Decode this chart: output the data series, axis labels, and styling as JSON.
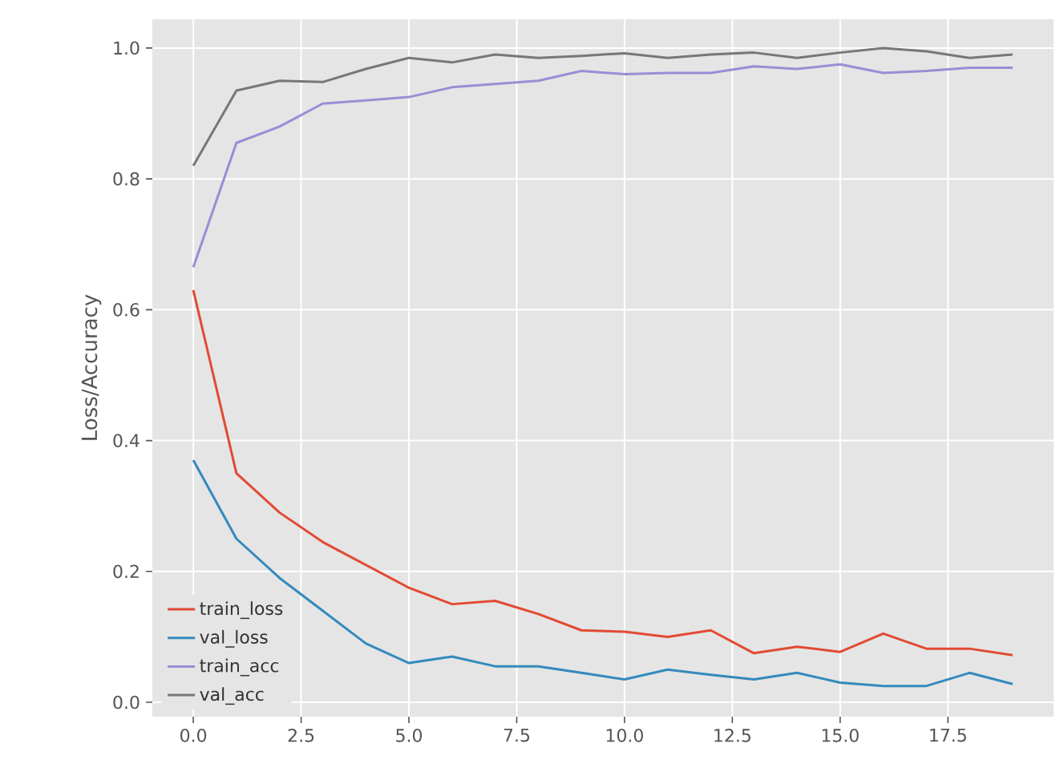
{
  "chart_data": {
    "type": "line",
    "ylabel": "Loss/Accuracy",
    "x": [
      0,
      1,
      2,
      3,
      4,
      5,
      6,
      7,
      8,
      9,
      10,
      11,
      12,
      13,
      14,
      15,
      16,
      17,
      18,
      19
    ],
    "series": [
      {
        "name": "train_loss",
        "color": "#e24a33",
        "values": [
          0.63,
          0.35,
          0.29,
          0.245,
          0.21,
          0.175,
          0.15,
          0.155,
          0.135,
          0.11,
          0.108,
          0.1,
          0.11,
          0.075,
          0.085,
          0.077,
          0.105,
          0.082,
          0.082,
          0.072
        ]
      },
      {
        "name": "val_loss",
        "color": "#348abd",
        "values": [
          0.37,
          0.25,
          0.19,
          0.14,
          0.09,
          0.06,
          0.07,
          0.055,
          0.055,
          0.045,
          0.035,
          0.05,
          0.042,
          0.035,
          0.045,
          0.03,
          0.025,
          0.025,
          0.045,
          0.028
        ]
      },
      {
        "name": "train_acc",
        "color": "#988ed5",
        "values": [
          0.665,
          0.855,
          0.88,
          0.915,
          0.92,
          0.925,
          0.94,
          0.945,
          0.95,
          0.965,
          0.96,
          0.962,
          0.962,
          0.972,
          0.968,
          0.975,
          0.962,
          0.965,
          0.97,
          0.97
        ]
      },
      {
        "name": "val_acc",
        "color": "#777777",
        "values": [
          0.82,
          0.935,
          0.95,
          0.948,
          0.968,
          0.985,
          0.978,
          0.99,
          0.985,
          0.988,
          0.992,
          0.985,
          0.99,
          0.993,
          0.985,
          0.993,
          1.0,
          0.995,
          0.985,
          0.99
        ]
      }
    ],
    "xlim": [
      -0.95,
      19.95
    ],
    "ylim": [
      -0.022,
      1.044
    ],
    "xticks": [
      {
        "value": 0,
        "label": "0.0"
      },
      {
        "value": 2.5,
        "label": "2.5"
      },
      {
        "value": 5,
        "label": "5.0"
      },
      {
        "value": 7.5,
        "label": "7.5"
      },
      {
        "value": 10,
        "label": "10.0"
      },
      {
        "value": 12.5,
        "label": "12.5"
      },
      {
        "value": 15,
        "label": "15.0"
      },
      {
        "value": 17.5,
        "label": "17.5"
      }
    ],
    "yticks": [
      {
        "value": 0,
        "label": "0.0"
      },
      {
        "value": 0.2,
        "label": "0.2"
      },
      {
        "value": 0.4,
        "label": "0.4"
      },
      {
        "value": 0.6,
        "label": "0.6"
      },
      {
        "value": 0.8,
        "label": "0.8"
      },
      {
        "value": 1.0,
        "label": "1.0"
      }
    ],
    "grid": true,
    "legend": "bottom left",
    "marker": "none",
    "line_style": "solid"
  }
}
